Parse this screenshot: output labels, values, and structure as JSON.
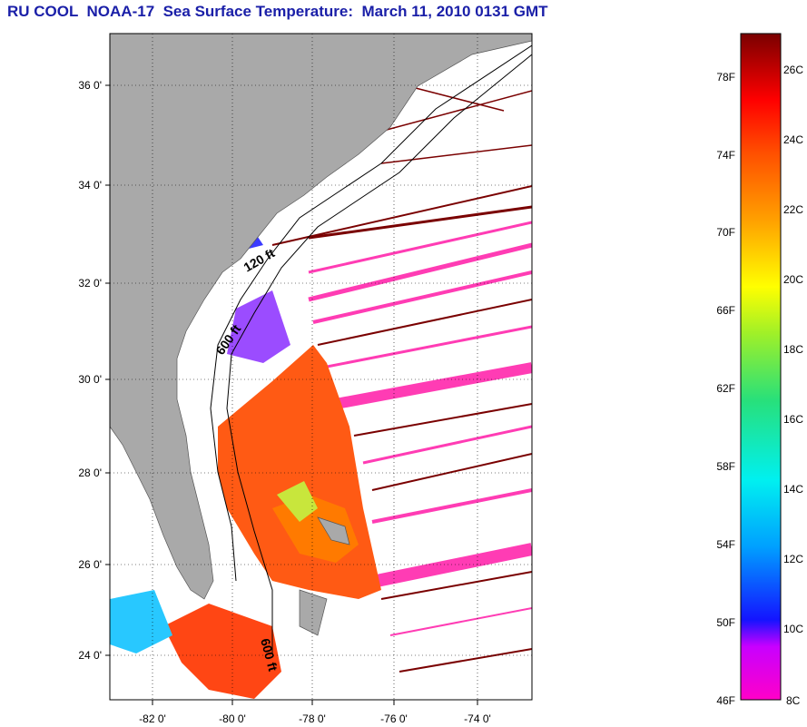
{
  "title": "RU COOL  NOAA-17  Sea Surface Temperature:  March 11, 2010 0131 GMT",
  "map": {
    "lat_labels": [
      "36 0'",
      "34 0'",
      "32 0'",
      "30 0'",
      "28 0'",
      "26 0'",
      "24 0'"
    ],
    "lon_labels": [
      "-82 0'",
      "-80 0'",
      "-78 0'",
      "-76 0'",
      "-74 0'"
    ],
    "isobath_labels": [
      "120 ft",
      "600 ft",
      "600 ft"
    ]
  },
  "colorbar": {
    "fahrenheit_labels": [
      "78F",
      "74F",
      "70F",
      "66F",
      "62F",
      "58F",
      "54F",
      "50F",
      "46F"
    ],
    "celsius_labels": [
      "26C",
      "24C",
      "22C",
      "20C",
      "18C",
      "16C",
      "14C",
      "12C",
      "10C",
      "8C"
    ]
  },
  "colors": {
    "land": "#a9a9a9",
    "title": "#1a1fa8",
    "water_no_data": "#ffffff"
  }
}
